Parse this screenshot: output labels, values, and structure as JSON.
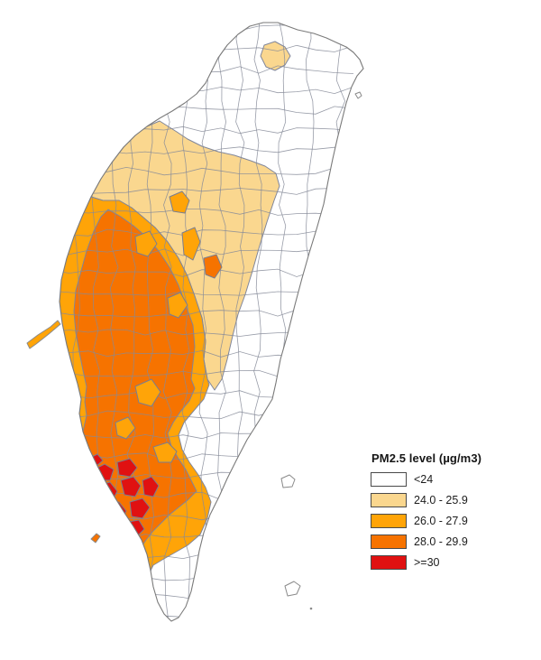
{
  "figure": {
    "kind": "choropleth-map",
    "subject": "Taiwan townships shaded by PM2.5 concentration",
    "background_color": "#ffffff"
  },
  "legend": {
    "title": "PM2.5 level (µg/m3)",
    "items": [
      {
        "label": "<24",
        "color": "#FFFFFF"
      },
      {
        "label": "24.0 - 25.9",
        "color": "#FAD78F"
      },
      {
        "label": "26.0 - 27.9",
        "color": "#FFA408"
      },
      {
        "label": "28.0 - 29.9",
        "color": "#F67300"
      },
      {
        "label": ">=30",
        "color": "#E01111"
      }
    ]
  },
  "map": {
    "class_colors": {
      "lt24": "#FFFFFF",
      "r24": "#FAD78F",
      "r26": "#FFA408",
      "r28": "#F67300",
      "r30": "#E01111",
      "city": "#A9ABB3"
    },
    "border_color": "#868B99",
    "coast_color": "#7A7A7A",
    "swatch_border_color": "#4A4A4A"
  },
  "chart_data": {
    "type": "heatmap",
    "title": "PM2.5 level (µg/m3)",
    "unit": "µg/m3",
    "legend_position": "right",
    "classes": [
      {
        "range": "<24",
        "color": "#FFFFFF",
        "areas": "north, east coast, central mountains, southern peninsula"
      },
      {
        "range": "24.0 - 25.9",
        "color": "#FAD78F",
        "areas": "Taipei basin cluster, northwest coast band, central inland band"
      },
      {
        "range": "26.0 - 27.9",
        "color": "#FFA408",
        "areas": "fringe around western plain core, southwest coastal strip, southern inland blob"
      },
      {
        "range": "28.0 - 29.9",
        "color": "#F67300",
        "areas": "western plain core (Changhua to Tainan/Kaohsiung)"
      },
      {
        "range": ">=30",
        "color": "#E01111",
        "areas": "Kaohsiung metropolitan cluster in the southwest"
      }
    ]
  }
}
